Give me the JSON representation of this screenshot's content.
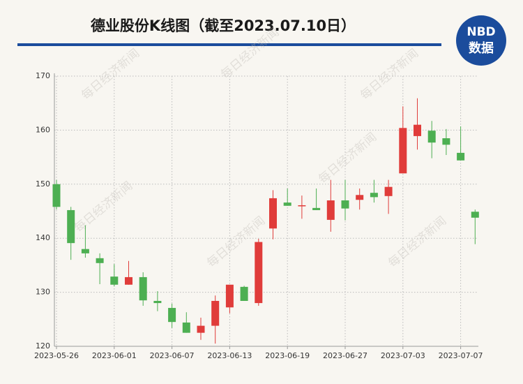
{
  "chart_data": {
    "type": "candlestick",
    "title": "德业股份K线图（截至2023.07.10日）",
    "logo": {
      "top": "NBD",
      "bottom": "数据"
    },
    "watermark": "每日经济新闻",
    "categories": [
      "2023-05-26",
      null,
      null,
      null,
      "2023-06-01",
      null,
      null,
      null,
      "2023-06-07",
      null,
      null,
      null,
      "2023-06-13",
      null,
      null,
      null,
      "2023-06-19",
      null,
      null,
      null,
      "2023-06-27",
      null,
      null,
      null,
      "2023-07-03",
      null,
      null,
      null,
      "2023-07-07",
      null
    ],
    "series": [
      {
        "up_color": "#e03c3a",
        "down_color": "#4daf52",
        "open": [
          150.0,
          145.2,
          138.0,
          136.3,
          132.9,
          131.4,
          132.8,
          128.4,
          127.1,
          124.4,
          122.5,
          123.8,
          127.2,
          131.0,
          128.0,
          141.8,
          146.6,
          146.0,
          145.6,
          143.4,
          147.0,
          147.1,
          148.4,
          147.8,
          152.0,
          158.9,
          159.9,
          158.5,
          155.8,
          144.9
        ],
        "high": [
          150.8,
          145.8,
          142.4,
          137.2,
          135.2,
          135.8,
          133.7,
          130.2,
          127.9,
          126.3,
          125.3,
          129.4,
          131.4,
          131.2,
          139.9,
          148.9,
          149.2,
          147.9,
          149.2,
          150.8,
          150.8,
          149.2,
          150.8,
          150.8,
          164.4,
          165.9,
          161.7,
          160.2,
          160.7,
          145.3
        ],
        "low": [
          145.3,
          136.0,
          136.4,
          131.5,
          131.1,
          131.4,
          127.5,
          126.5,
          123.4,
          122.5,
          121.2,
          120.5,
          126.1,
          128.4,
          127.5,
          139.8,
          146.0,
          143.6,
          145.2,
          141.2,
          143.3,
          145.3,
          146.6,
          144.5,
          152.0,
          156.4,
          154.8,
          155.4,
          154.4,
          138.9
        ],
        "close": [
          145.8,
          139.1,
          137.2,
          135.4,
          131.4,
          132.8,
          128.5,
          128.0,
          124.5,
          122.5,
          123.8,
          128.4,
          131.4,
          128.4,
          139.3,
          147.4,
          146.0,
          146.1,
          145.2,
          147.0,
          145.5,
          148.0,
          147.6,
          149.5,
          160.4,
          161.0,
          157.7,
          157.3,
          154.4,
          143.8
        ]
      }
    ],
    "ylim": [
      120,
      170
    ],
    "yticks": [
      120,
      130,
      140,
      150,
      160,
      170
    ],
    "grid": true
  }
}
